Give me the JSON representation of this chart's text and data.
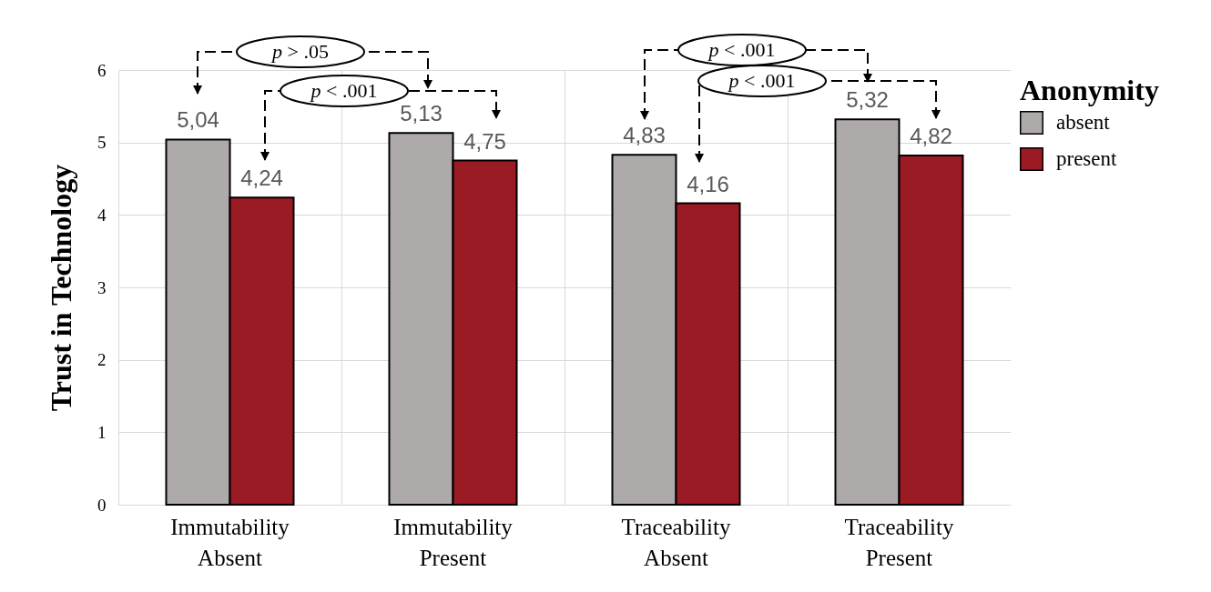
{
  "chart_data": {
    "type": "bar",
    "ylabel": "Trust in Technology",
    "legend_title": "Anonymity",
    "categories": [
      "Immutability Absent",
      "Immutability Present",
      "Traceability Absent",
      "Traceability Present"
    ],
    "series": [
      {
        "name": "absent",
        "color": "#afaaaa",
        "values": [
          5.04,
          5.13,
          4.83,
          5.32
        ],
        "value_labels": [
          "5,04",
          "5,13",
          "4,83",
          "5,32"
        ]
      },
      {
        "name": "present",
        "color": "#9b1b24",
        "values": [
          4.24,
          4.75,
          4.16,
          4.82
        ],
        "value_labels": [
          "4,24",
          "4,75",
          "4,16",
          "4,82"
        ]
      }
    ],
    "ylim": [
      0,
      6
    ],
    "yticks": [
      0,
      1,
      2,
      3,
      4,
      5,
      6
    ],
    "grid": true,
    "legend": "right",
    "annotations": [
      "p > .05",
      "p < .001",
      "p < .001",
      "p < .001"
    ]
  }
}
